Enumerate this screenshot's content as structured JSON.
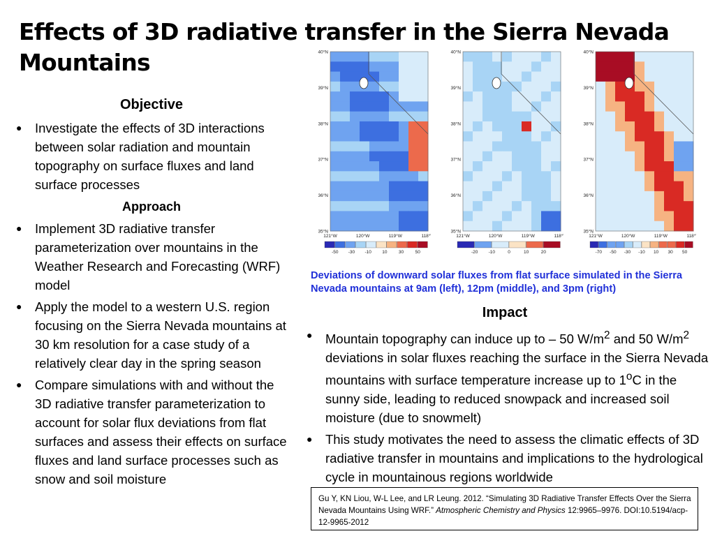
{
  "slide": {
    "title": "Effects of 3D radiative transfer in the Sierra Nevada Mountains",
    "objective": {
      "heading": "Objective",
      "bullets": [
        "Investigate the effects of 3D interactions between solar radiation and mountain topography on surface fluxes and land surface processes"
      ]
    },
    "approach": {
      "heading": "Approach",
      "bullets": [
        "Implement 3D radiative transfer parameterization over mountains in the Weather Research and Forecasting (WRF) model",
        "Apply the model to a western U.S. region focusing on the Sierra Nevada mountains at 30 km resolution for a case study of a relatively clear day in the spring season",
        "Compare simulations with and without the 3D radiative transfer parameterization to account for solar flux deviations from flat surfaces and assess their effects on surface fluxes and land surface processes such as snow and soil moisture"
      ]
    },
    "impact": {
      "heading": "Impact",
      "bullet1": {
        "p1": "Mountain topography can induce up to – 50 W/m",
        "sup1": "2",
        "p2": " and 50 W/m",
        "sup2": "2",
        "p3": " deviations in solar fluxes reaching the surface in the Sierra Nevada mountains with surface temperature increase up to 1",
        "sup3": "o",
        "p4": "C in the sunny side, leading to reduced snowpack and increased soil moisture (due to snowmelt)"
      },
      "bullet2": "This study motivates the need to assess the climatic effects of 3D radiative transfer in mountains and implications to the hydrological cycle in mountainous regions worldwide"
    },
    "figure": {
      "caption": "Deviations of downward solar fluxes from flat surface simulated in the Sierra Nevada mountains at 9am (left), 12pm (middle), and 3pm (right)",
      "lat_ticks": [
        "40°N",
        "39°N",
        "38°N",
        "37°N",
        "36°N",
        "35°N"
      ],
      "lon_ticks": [
        "121°W",
        "120°W",
        "119°W",
        "118°W"
      ],
      "colors": [
        "#2a2ab4",
        "#3d6fe0",
        "#6fa3f0",
        "#a8d4f5",
        "#d8ecfa",
        "#fbe3c5",
        "#f6b382",
        "#ec6a4c",
        "#d92a24",
        "#a80d24"
      ],
      "panels": [
        {
          "name": "9am",
          "legend_ticks": [
            "-50",
            "-30",
            "-10",
            "10",
            "30",
            "50"
          ],
          "base": 2
        },
        {
          "name": "12pm",
          "legend_ticks": [
            "-20",
            "-10",
            "0",
            "10",
            "20"
          ],
          "base": 4
        },
        {
          "name": "3pm",
          "legend_ticks": [
            "-70",
            "-50",
            "-30",
            "-10",
            "10",
            "30",
            "50"
          ],
          "base": 6
        }
      ]
    },
    "reference": {
      "text1": "Gu Y, KN Liou, W-L Lee, and LR Leung. 2012. “Simulating 3D Radiative Transfer Effects Over the Sierra Nevada Mountains Using WRF.” ",
      "journal": "Atmospheric Chemistry and Physics",
      "text2": " 12:9965–9976. DOI:10.5194/acp-12-9965-2012"
    }
  }
}
